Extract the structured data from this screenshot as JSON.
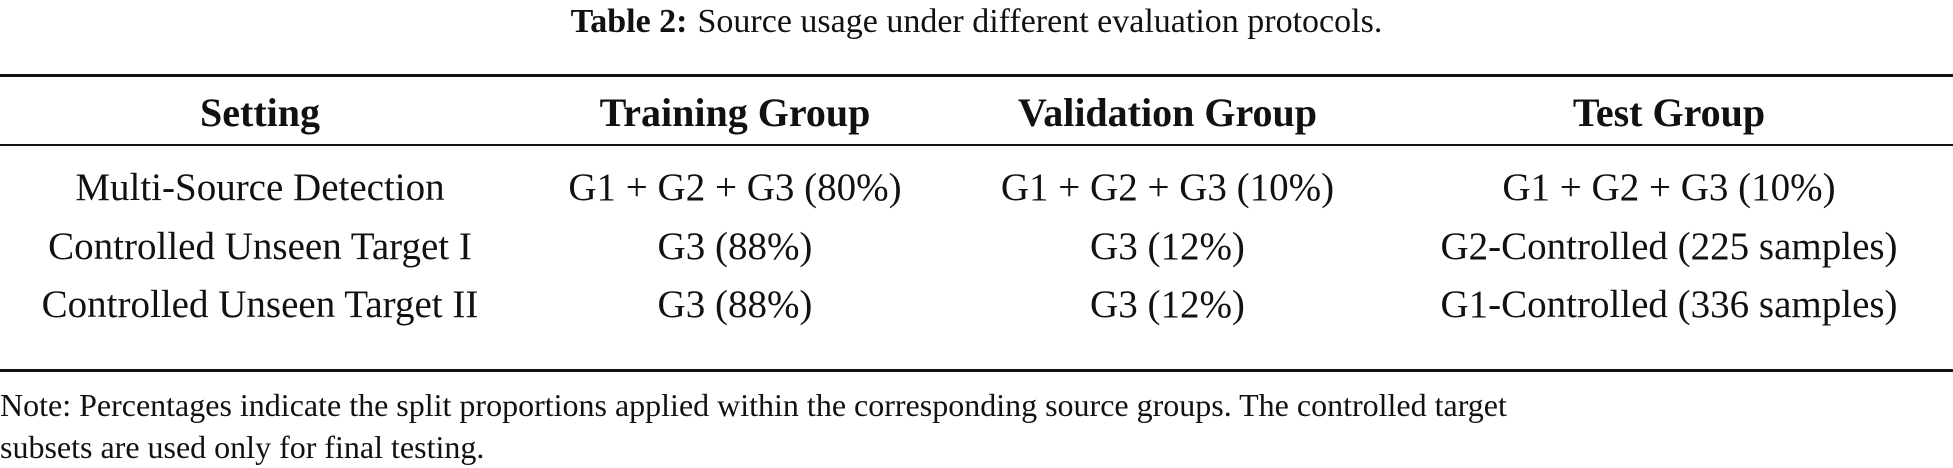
{
  "caption": {
    "label": "Table 2:",
    "text": "Source usage under different evaluation protocols."
  },
  "table": {
    "headers": [
      "Setting",
      "Training Group",
      "Validation Group",
      "Test Group"
    ],
    "rows": [
      [
        "Multi-Source Detection",
        "G1 + G2 + G3 (80%)",
        "G1 + G2 + G3 (10%)",
        "G1 + G2 + G3 (10%)"
      ],
      [
        "Controlled Unseen Target I",
        "G3 (88%)",
        "G3 (12%)",
        "G2-Controlled (225 samples)"
      ],
      [
        "Controlled Unseen Target II",
        "G3 (88%)",
        "G3 (12%)",
        "G1-Controlled (336 samples)"
      ]
    ]
  },
  "note": {
    "line1": "Note: Percentages indicate the split proportions applied within the corresponding source groups. The controlled target",
    "line2": "subsets are used only for final testing."
  }
}
